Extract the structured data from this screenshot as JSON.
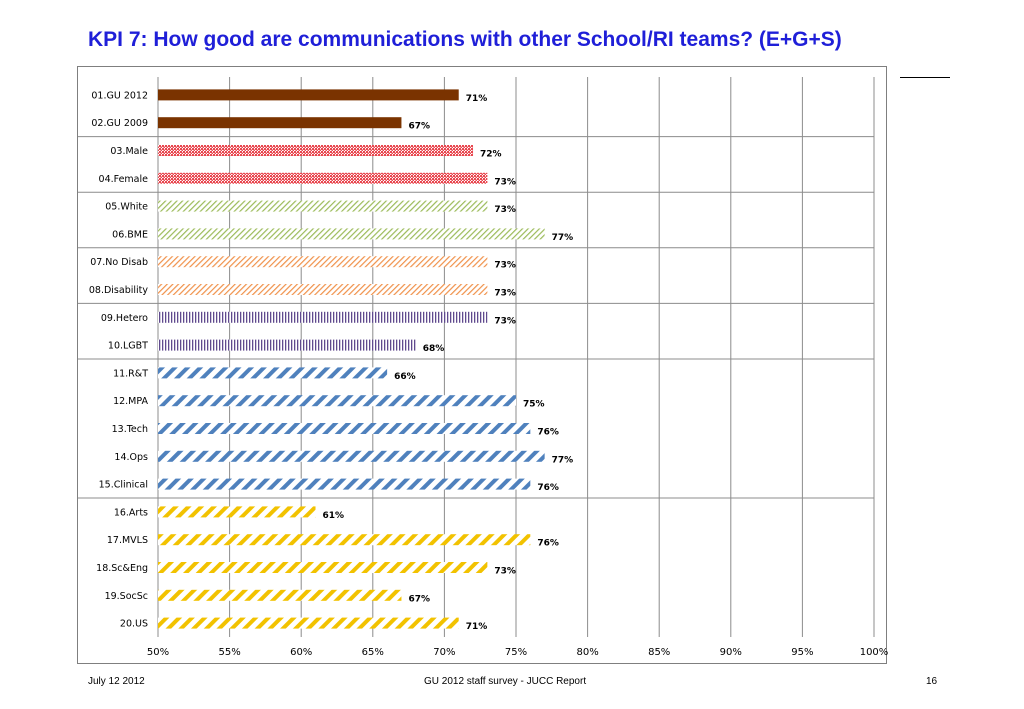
{
  "slide": {
    "title": "KPI 7: How good are communications with other School/RI teams? (E+G+S)",
    "footer_left": "July 12 2012",
    "footer_center": "GU 2012 staff survey -  JUCC Report",
    "page_number": "16"
  },
  "chart_data": {
    "type": "bar",
    "orientation": "horizontal",
    "title": "",
    "xlabel": "",
    "ylabel": "",
    "xlim": [
      50,
      100
    ],
    "x_ticks": [
      "50%",
      "55%",
      "60%",
      "65%",
      "70%",
      "75%",
      "80%",
      "85%",
      "90%",
      "95%",
      "100%"
    ],
    "grid": true,
    "categories": [
      "01.GU 2012",
      "02.GU 2009",
      "03.Male",
      "04.Female",
      "05.White",
      "06.BME",
      "07.No Disab",
      "08.Disability",
      "09.Hetero",
      "10.LGBT",
      "11.R&T",
      "12.MPA",
      "13.Tech",
      "14.Ops",
      "15.Clinical",
      "16.Arts",
      "17.MVLS",
      "18.Sc&Eng",
      "19.SocSc",
      "20.US"
    ],
    "values": [
      71,
      67,
      72,
      73,
      73,
      77,
      73,
      73,
      73,
      68,
      66,
      75,
      76,
      77,
      76,
      61,
      76,
      73,
      67,
      71
    ],
    "value_labels": [
      "71%",
      "67%",
      "72%",
      "73%",
      "73%",
      "77%",
      "73%",
      "73%",
      "73%",
      "68%",
      "66%",
      "75%",
      "76%",
      "77%",
      "76%",
      "61%",
      "76%",
      "73%",
      "67%",
      "71%"
    ],
    "groups": [
      {
        "color": "#7a3300",
        "pattern": "solid",
        "count": 2
      },
      {
        "color": "#e8474f",
        "pattern": "dense-dots",
        "count": 2
      },
      {
        "color": "#9bbb59",
        "pattern": "thin-diagonal",
        "count": 2
      },
      {
        "color": "#f0914a",
        "pattern": "thin-diagonal",
        "count": 2
      },
      {
        "color": "#604a8e",
        "pattern": "vertical-lines",
        "count": 2
      },
      {
        "color": "#4f81bd",
        "pattern": "wide-diagonal",
        "count": 5
      },
      {
        "color": "#f2c200",
        "pattern": "wide-diagonal",
        "count": 5
      }
    ]
  }
}
